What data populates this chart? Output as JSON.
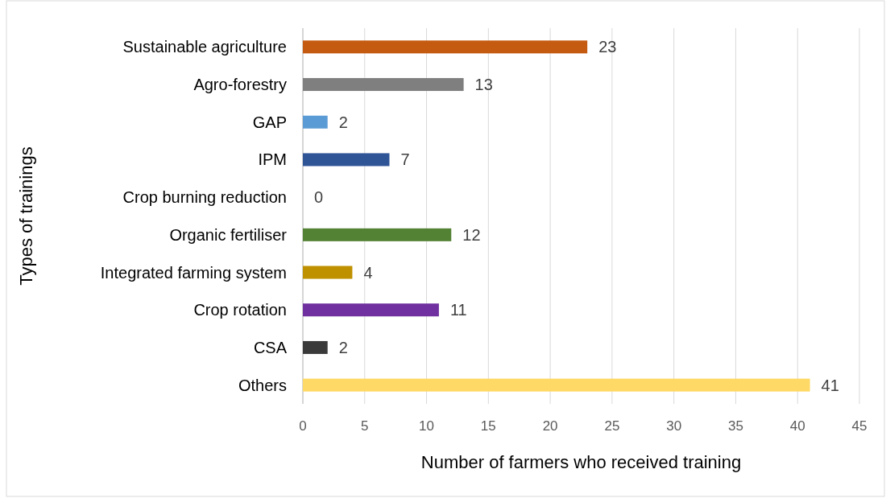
{
  "chart_data": {
    "type": "bar",
    "orientation": "horizontal",
    "categories": [
      "Sustainable agriculture",
      "Agro-forestry",
      "GAP",
      "IPM",
      "Crop burning reduction",
      "Organic fertiliser",
      "Integrated farming system",
      "Crop rotation",
      "CSA",
      "Others"
    ],
    "values": [
      23,
      13,
      2,
      7,
      0,
      12,
      4,
      11,
      2,
      41
    ],
    "colors": [
      "#c55a11",
      "#7f7f7f",
      "#5b9bd5",
      "#2f5597",
      "#a5a5a5",
      "#548235",
      "#bf9000",
      "#7030a0",
      "#3a3a3a",
      "#ffd966"
    ],
    "xlim": [
      0,
      45
    ],
    "xticks": [
      0,
      5,
      10,
      15,
      20,
      25,
      30,
      35,
      40,
      45
    ],
    "xlabel": "Number of farmers who received training",
    "ylabel": "Types of trainings",
    "grid": "x",
    "data_labels": true
  }
}
